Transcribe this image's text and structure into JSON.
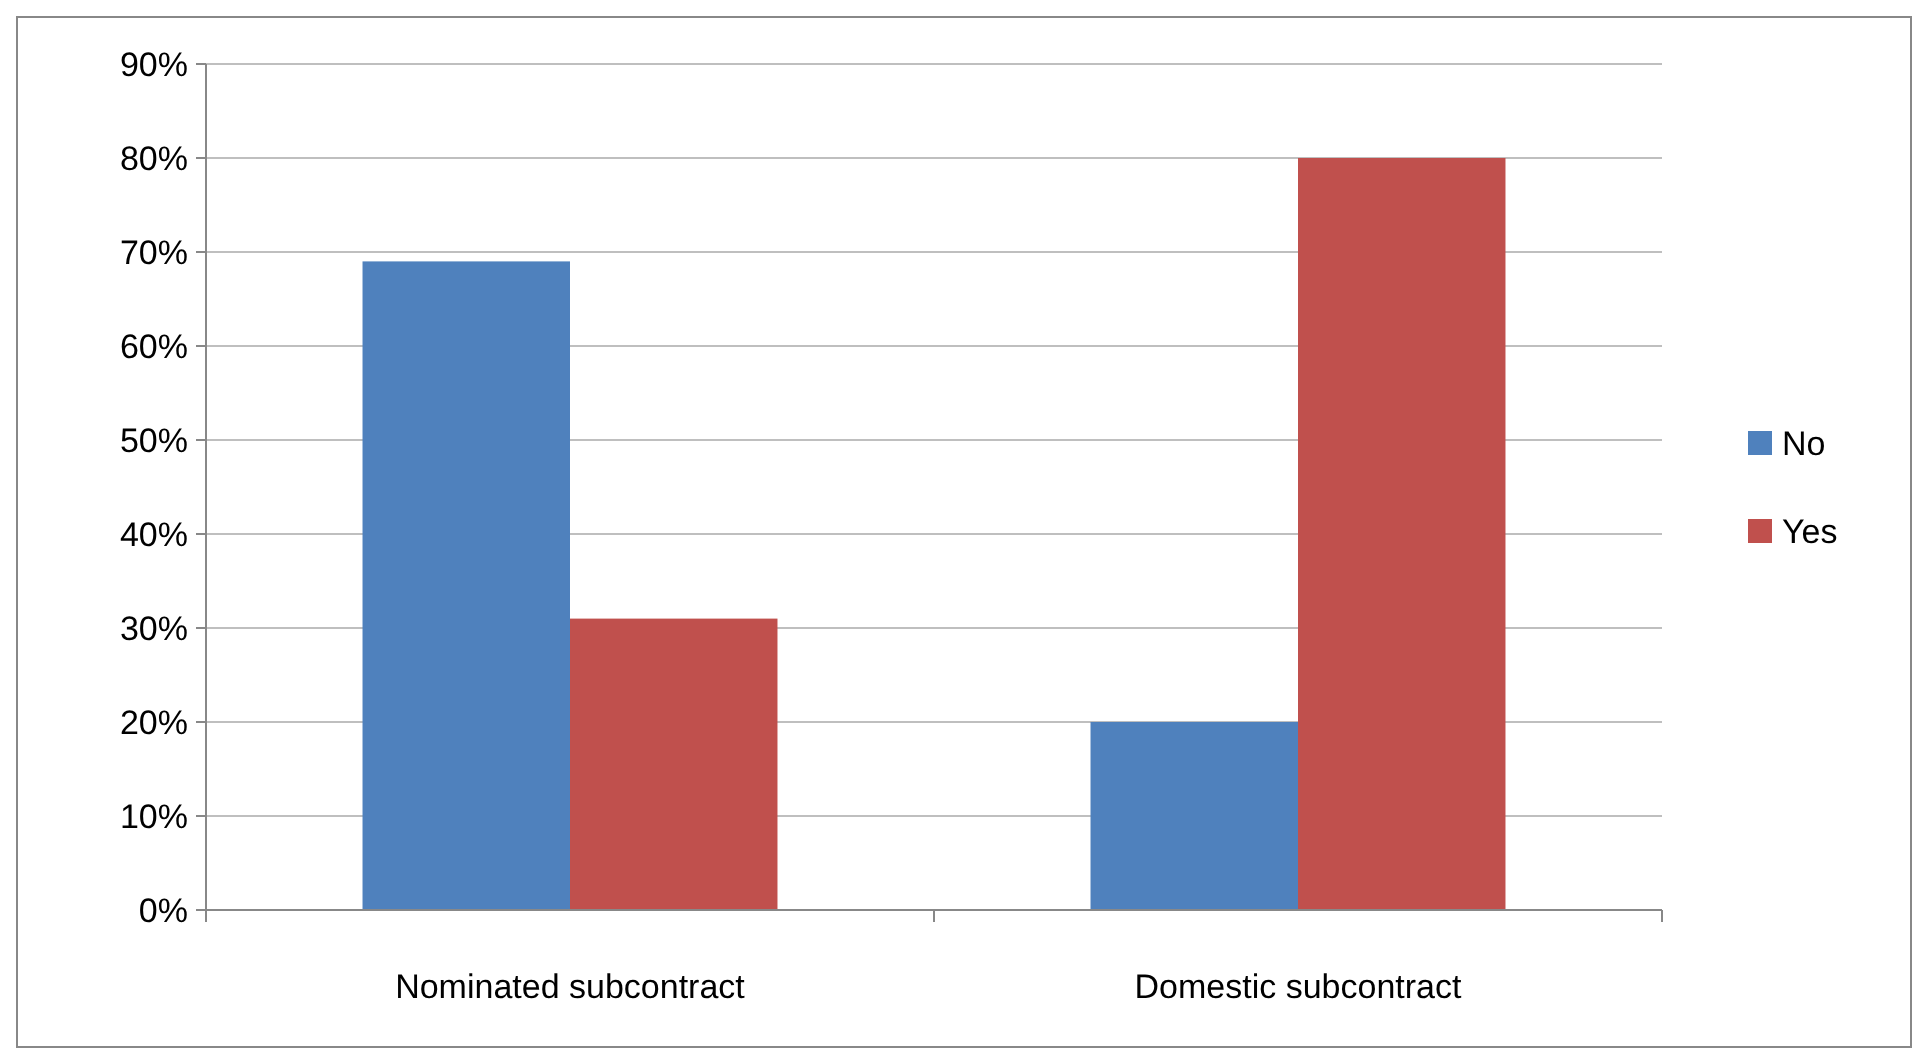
{
  "chart_data": {
    "type": "bar",
    "categories": [
      "Nominated subcontract",
      "Domestic subcontract"
    ],
    "series": [
      {
        "name": "No",
        "color": "#4f81bd",
        "values": [
          69,
          20
        ]
      },
      {
        "name": "Yes",
        "color": "#c0504d",
        "values": [
          31,
          80
        ]
      }
    ],
    "ylim": [
      0,
      90
    ],
    "yticks": [
      {
        "value": 0,
        "label": "0%"
      },
      {
        "value": 10,
        "label": "10%"
      },
      {
        "value": 20,
        "label": "20%"
      },
      {
        "value": 30,
        "label": "30%"
      },
      {
        "value": 40,
        "label": "40%"
      },
      {
        "value": 50,
        "label": "50%"
      },
      {
        "value": 60,
        "label": "60%"
      },
      {
        "value": 70,
        "label": "70%"
      },
      {
        "value": 80,
        "label": "80%"
      },
      {
        "value": 90,
        "label": "90%"
      }
    ],
    "grid": "y",
    "legend": "right"
  }
}
